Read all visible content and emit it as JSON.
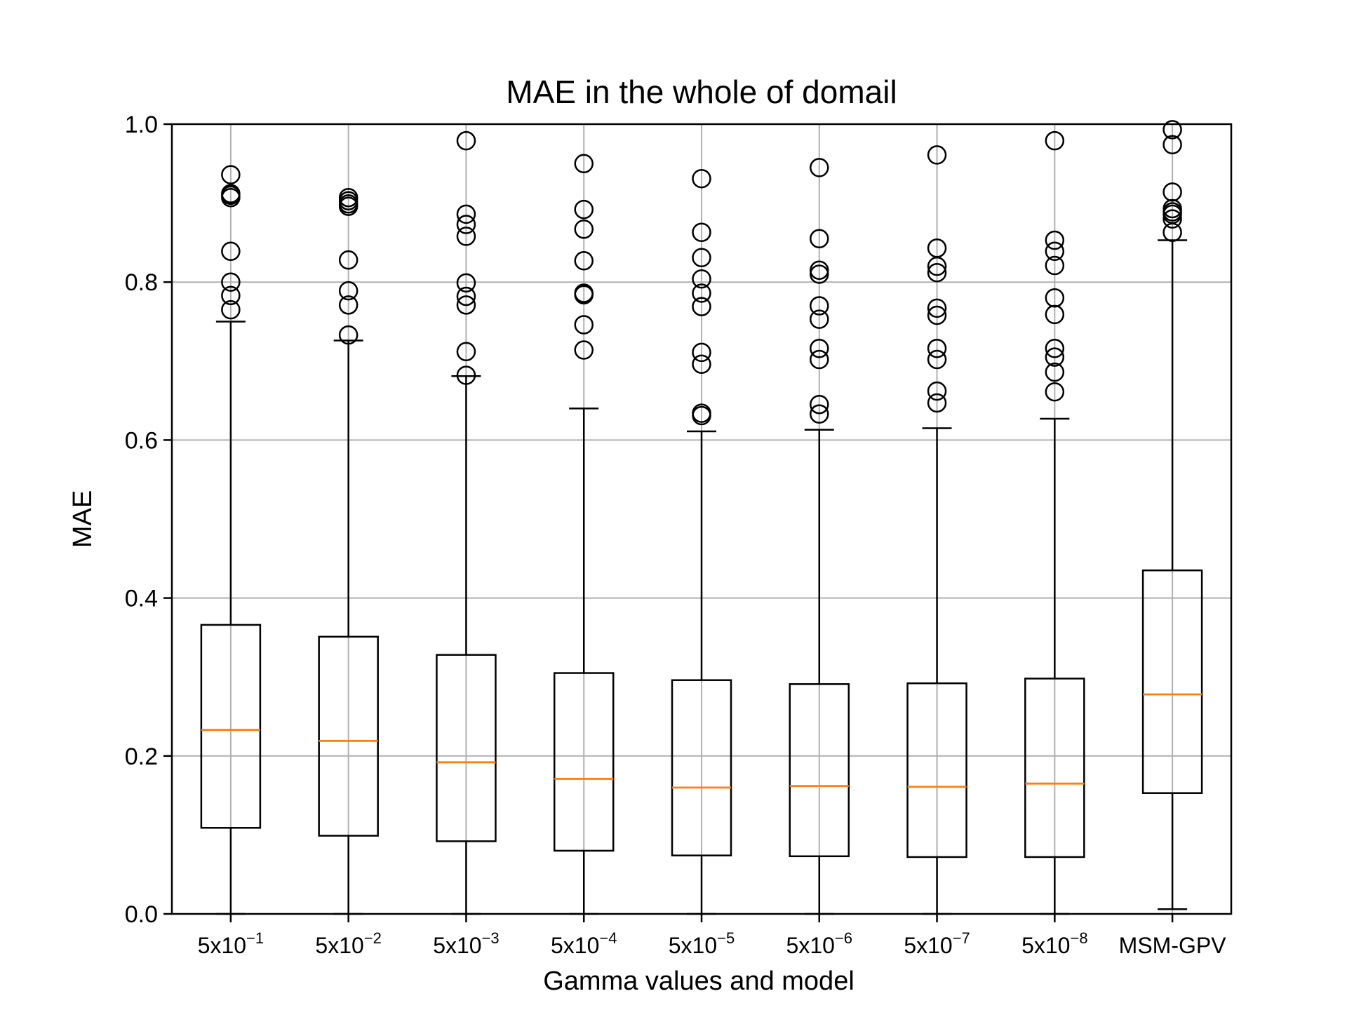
{
  "chart_data": {
    "type": "box",
    "title": "MAE in the whole of domail",
    "xlabel": "Gamma values and model",
    "ylabel": "MAE",
    "ylim": [
      0.0,
      1.0
    ],
    "yticks": [
      "0.0",
      "0.2",
      "0.4",
      "0.6",
      "0.8",
      "1.0"
    ],
    "grid": true,
    "categories": [
      {
        "base": "5x10",
        "exp": "−1"
      },
      {
        "base": "5x10",
        "exp": "−2"
      },
      {
        "base": "5x10",
        "exp": "−3"
      },
      {
        "base": "5x10",
        "exp": "−4"
      },
      {
        "base": "5x10",
        "exp": "−5"
      },
      {
        "base": "5x10",
        "exp": "−6"
      },
      {
        "base": "5x10",
        "exp": "−7"
      },
      {
        "base": "5x10",
        "exp": "−8"
      },
      {
        "base": "MSM-GPV",
        "exp": ""
      }
    ],
    "boxes": [
      {
        "whisker_low": 0.0,
        "q1": 0.109,
        "median": 0.233,
        "q3": 0.366,
        "whisker_high": 0.75,
        "outliers": [
          0.765,
          0.783,
          0.8,
          0.839,
          0.907,
          0.91,
          0.912,
          0.936
        ]
      },
      {
        "whisker_low": 0.0,
        "q1": 0.099,
        "median": 0.219,
        "q3": 0.351,
        "whisker_high": 0.726,
        "outliers": [
          0.733,
          0.771,
          0.789,
          0.828,
          0.896,
          0.899,
          0.903,
          0.907
        ]
      },
      {
        "whisker_low": 0.0,
        "q1": 0.092,
        "median": 0.192,
        "q3": 0.328,
        "whisker_high": 0.681,
        "outliers": [
          0.682,
          0.712,
          0.771,
          0.782,
          0.799,
          0.858,
          0.873,
          0.886,
          0.979
        ]
      },
      {
        "whisker_low": 0.0,
        "q1": 0.08,
        "median": 0.171,
        "q3": 0.305,
        "whisker_high": 0.64,
        "outliers": [
          0.714,
          0.746,
          0.784,
          0.786,
          0.827,
          0.867,
          0.892,
          0.95
        ]
      },
      {
        "whisker_low": 0.0,
        "q1": 0.074,
        "median": 0.16,
        "q3": 0.296,
        "whisker_high": 0.611,
        "outliers": [
          0.631,
          0.634,
          0.696,
          0.711,
          0.769,
          0.786,
          0.804,
          0.831,
          0.863,
          0.931
        ]
      },
      {
        "whisker_low": 0.0,
        "q1": 0.073,
        "median": 0.162,
        "q3": 0.291,
        "whisker_high": 0.613,
        "outliers": [
          0.633,
          0.645,
          0.702,
          0.716,
          0.753,
          0.77,
          0.81,
          0.815,
          0.855,
          0.945
        ]
      },
      {
        "whisker_low": 0.0,
        "q1": 0.072,
        "median": 0.161,
        "q3": 0.292,
        "whisker_high": 0.615,
        "outliers": [
          0.647,
          0.662,
          0.702,
          0.716,
          0.758,
          0.767,
          0.812,
          0.82,
          0.843,
          0.961
        ]
      },
      {
        "whisker_low": 0.0,
        "q1": 0.072,
        "median": 0.165,
        "q3": 0.298,
        "whisker_high": 0.627,
        "outliers": [
          0.661,
          0.686,
          0.705,
          0.716,
          0.759,
          0.78,
          0.821,
          0.839,
          0.853,
          0.979
        ]
      },
      {
        "whisker_low": 0.006,
        "q1": 0.153,
        "median": 0.278,
        "q3": 0.435,
        "whisker_high": 0.853,
        "outliers": [
          0.863,
          0.88,
          0.886,
          0.889,
          0.893,
          0.914,
          0.974,
          0.993
        ]
      }
    ],
    "colors": {
      "box": "#000000",
      "median": "#ff7f0e",
      "grid": "#b0b0b0",
      "flier": "#000000"
    }
  }
}
